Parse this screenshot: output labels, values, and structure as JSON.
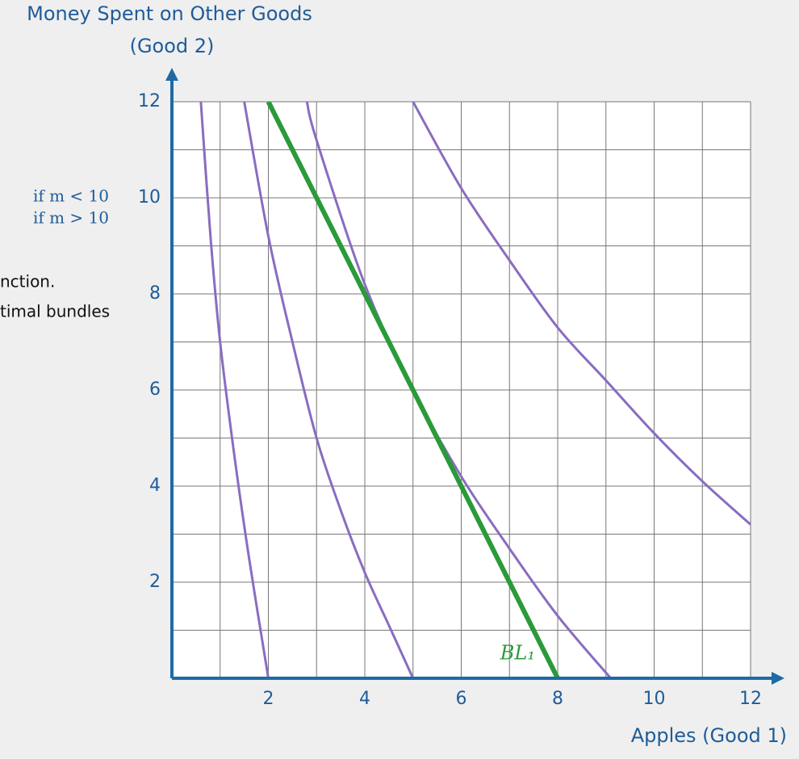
{
  "chart_data": {
    "type": "line",
    "ylabel": [
      "Money Spent on Other Goods",
      "(Good 2)"
    ],
    "xlabel": "Apples (Good 1)",
    "xlim": [
      0,
      12
    ],
    "ylim": [
      0,
      12
    ],
    "xticks": [
      2,
      4,
      6,
      8,
      10,
      12
    ],
    "yticks": [
      2,
      4,
      6,
      8,
      10,
      12
    ],
    "xgrid": [
      1,
      2,
      3,
      4,
      5,
      6,
      7,
      8,
      9,
      10,
      11,
      12
    ],
    "ygrid": [
      1,
      2,
      3,
      4,
      5,
      6,
      7,
      8,
      9,
      10,
      11,
      12
    ],
    "grid": true,
    "series": [
      {
        "color": "#8a6cc0",
        "x": [
          0.6,
          0.8,
          1,
          1.3,
          1.6,
          2
        ],
        "values": [
          12,
          9.2,
          7,
          4.6,
          2.5,
          0
        ]
      },
      {
        "color": "#8a6cc0",
        "x": [
          1.5,
          2,
          2.5,
          3,
          3.5,
          4,
          4.5,
          5
        ],
        "values": [
          12,
          9.2,
          7,
          5,
          3.5,
          2.2,
          1.1,
          0
        ]
      },
      {
        "color": "#8a6cc0",
        "x": [
          2.8,
          3,
          4,
          5,
          6,
          7,
          8,
          9.1
        ],
        "values": [
          12,
          11.2,
          8.2,
          6,
          4.2,
          2.7,
          1.3,
          0
        ]
      },
      {
        "color": "#8a6cc0",
        "x": [
          5,
          6,
          7,
          8,
          9,
          10,
          11,
          12
        ],
        "values": [
          12,
          10.2,
          8.7,
          7.3,
          6.2,
          5.1,
          4.1,
          3.2
        ]
      },
      {
        "name": "BL₁",
        "color": "#2a9a3a",
        "x": [
          2,
          8
        ],
        "values": [
          12,
          0
        ]
      }
    ]
  },
  "fragments": {
    "conditions": [
      "if m < 10",
      "if m > 10"
    ],
    "text": [
      "nction.",
      "timal bundles"
    ]
  }
}
